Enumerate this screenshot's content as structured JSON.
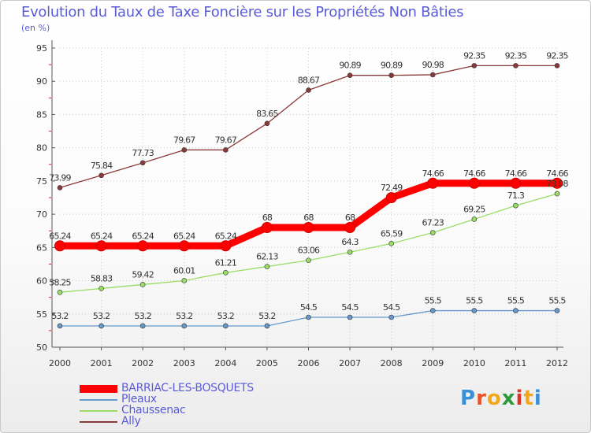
{
  "chart_data": {
    "type": "line",
    "title": "Evolution du Taux de Taxe Foncière sur les Propriétés Non Bâties",
    "ylabel": "(en %)",
    "xlabel": "",
    "categories": [
      "2000",
      "2001",
      "2002",
      "2003",
      "2004",
      "2005",
      "2006",
      "2007",
      "2008",
      "2009",
      "2010",
      "2011",
      "2012"
    ],
    "ylim": [
      50,
      95
    ],
    "yticks": [
      50,
      55,
      60,
      65,
      70,
      75,
      80,
      85,
      90,
      95
    ],
    "series": [
      {
        "name": "BARRIAC-LES-BOSQUETS",
        "color": "#ff0000",
        "values": [
          65.24,
          65.24,
          65.24,
          65.24,
          65.24,
          68,
          68,
          68,
          72.49,
          74.66,
          74.66,
          74.66,
          74.66
        ],
        "labels": [
          "65.24",
          "65.24",
          "65.24",
          "65.24",
          "65.24",
          "68",
          "68",
          "68",
          "72.49",
          "74.66",
          "74.66",
          "74.66",
          "74.66"
        ]
      },
      {
        "name": "Pleaux",
        "color": "#6699cc",
        "values": [
          53.2,
          53.2,
          53.2,
          53.2,
          53.2,
          53.2,
          54.5,
          54.5,
          54.5,
          55.5,
          55.5,
          55.5,
          55.5
        ],
        "labels": [
          "53.2",
          "53.2",
          "53.2",
          "53.2",
          "53.2",
          "53.2",
          "54.5",
          "54.5",
          "54.5",
          "55.5",
          "55.5",
          "55.5",
          "55.5"
        ]
      },
      {
        "name": "Chaussenac",
        "color": "#99dd66",
        "values": [
          58.25,
          58.83,
          59.42,
          60.01,
          61.21,
          62.13,
          63.06,
          64.3,
          65.59,
          67.23,
          69.25,
          71.3,
          73.08
        ],
        "labels": [
          "58.25",
          "58.83",
          "59.42",
          "60.01",
          "61.21",
          "62.13",
          "63.06",
          "64.3",
          "65.59",
          "67.23",
          "69.25",
          "71.3",
          "73.08"
        ]
      },
      {
        "name": "Ally",
        "color": "#8b3a3a",
        "values": [
          73.99,
          75.84,
          77.73,
          79.67,
          79.67,
          83.65,
          88.67,
          90.89,
          90.89,
          90.98,
          92.35,
          92.35,
          92.35
        ],
        "labels": [
          "73.99",
          "75.84",
          "77.73",
          "79.67",
          "79.67",
          "83.65",
          "88.67",
          "90.89",
          "90.89",
          "90.98",
          "92.35",
          "92.35",
          "92.35"
        ]
      }
    ]
  }
}
